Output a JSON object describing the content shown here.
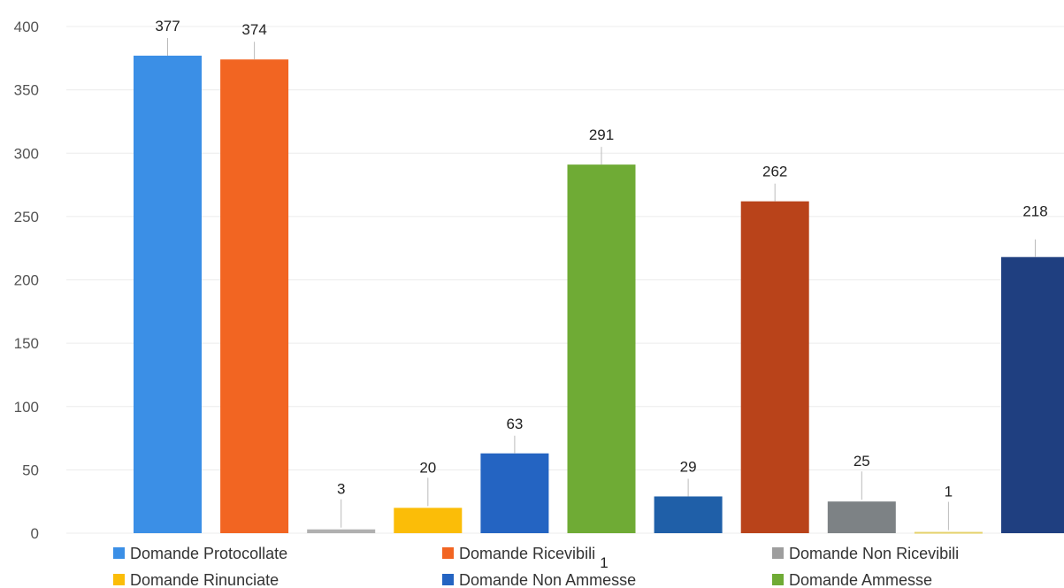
{
  "chart_data": {
    "type": "bar",
    "title": "",
    "xlabel": "",
    "ylabel": "",
    "ylim": [
      0,
      400
    ],
    "yticks": [
      0,
      50,
      100,
      150,
      200,
      250,
      300,
      350,
      400
    ],
    "grid": true,
    "legend_position": "bottom",
    "bars": [
      {
        "value": 377,
        "label": "377",
        "color": "#3b8fe6"
      },
      {
        "value": 374,
        "label": "374",
        "color": "#f26522"
      },
      {
        "value": 3,
        "label": "3",
        "color": "#b0b0b0"
      },
      {
        "value": 20,
        "label": "20",
        "color": "#fbbd08"
      },
      {
        "value": 63,
        "label": "63",
        "color": "#2464c2"
      },
      {
        "value": 291,
        "label": "291",
        "color": "#6fab35"
      },
      {
        "value": 29,
        "label": "29",
        "color": "#1f5fa8"
      },
      {
        "value": 262,
        "label": "262",
        "color": "#b9431a"
      },
      {
        "value": 25,
        "label": "25",
        "color": "#7d8285"
      },
      {
        "value": 1,
        "label": "1",
        "color": "#e5d16b"
      },
      {
        "value": 218,
        "label": "218",
        "color": "#1f3f80"
      }
    ],
    "legend": [
      {
        "name": "Domande Protocollate",
        "color": "#3b8fe6"
      },
      {
        "name": "Domande Ricevibili",
        "color": "#f26522"
      },
      {
        "name": "Domande Non Ricevibili",
        "color": "#9e9e9e"
      },
      {
        "name": "Domande Rinunciate",
        "color": "#fbbd08"
      },
      {
        "name": "Domande Non Ammesse",
        "color": "#2464c2"
      },
      {
        "name": "Domande Ammesse",
        "color": "#6fab35"
      }
    ],
    "stray_label": "1"
  }
}
